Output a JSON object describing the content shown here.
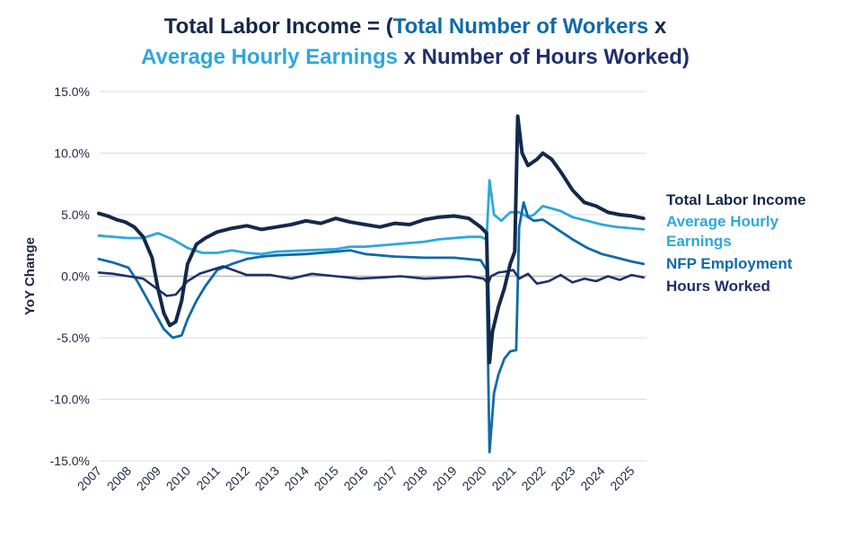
{
  "title": {
    "line1": {
      "part1": "Total Labor Income = (",
      "part2": "Total Number of Workers",
      "part3": " x"
    },
    "line2": {
      "part1": "Average Hourly Earnings",
      "part2": " x Number of Hours Worked)"
    }
  },
  "colors": {
    "navy": "#13294b",
    "mid_blue": "#0f6aa8",
    "light_blue": "#2fa7da",
    "hours": "#1f2f6b",
    "grid": "#dcdcdc",
    "zero": "#b8b8b8"
  },
  "chart_data": {
    "type": "line",
    "title": "Total Labor Income = (Total Number of Workers x Average Hourly Earnings x Number of Hours Worked)",
    "ylabel": "YoY Change",
    "xlabel": "",
    "ylim": [
      -15,
      15
    ],
    "xlim": [
      2007.0,
      2025.5
    ],
    "y_ticks": [
      15,
      10,
      5,
      0,
      -5,
      -10,
      -15
    ],
    "y_tick_labels": [
      "15.0%",
      "10.0%",
      "5.0%",
      "0.0%",
      "-5.0%",
      "-10.0%",
      "-15.0%"
    ],
    "x_ticks": [
      2007,
      2008,
      2009,
      2010,
      2011,
      2012,
      2013,
      2014,
      2015,
      2016,
      2017,
      2018,
      2019,
      2020,
      2021,
      2022,
      2023,
      2024,
      2025
    ],
    "x_tick_labels": [
      "2007",
      "2008",
      "2009",
      "2010",
      "2011",
      "2012",
      "2013",
      "2014",
      "2015",
      "2016",
      "2017",
      "2018",
      "2019",
      "2020",
      "2021",
      "2022",
      "2023",
      "2024",
      "2025"
    ],
    "grid": true,
    "legend_position": "right",
    "series": [
      {
        "name": "Total Labor Income",
        "color": "#13294b",
        "legend_label": "Total Labor Income",
        "x": [
          2007.0,
          2007.3,
          2007.6,
          2007.9,
          2008.2,
          2008.5,
          2008.8,
          2009.0,
          2009.2,
          2009.4,
          2009.6,
          2009.8,
          2010.0,
          2010.3,
          2010.6,
          2011.0,
          2011.5,
          2012.0,
          2012.5,
          2013.0,
          2013.5,
          2014.0,
          2014.5,
          2015.0,
          2015.5,
          2016.0,
          2016.5,
          2017.0,
          2017.5,
          2018.0,
          2018.5,
          2019.0,
          2019.5,
          2019.9,
          2020.1,
          2020.2,
          2020.3,
          2020.5,
          2020.7,
          2020.9,
          2021.05,
          2021.15,
          2021.3,
          2021.5,
          2021.8,
          2022.0,
          2022.3,
          2022.6,
          2023.0,
          2023.4,
          2023.8,
          2024.2,
          2024.6,
          2025.0,
          2025.4
        ],
        "values": [
          5.1,
          4.9,
          4.6,
          4.4,
          4.0,
          3.2,
          1.5,
          -1.0,
          -3.0,
          -4.0,
          -3.7,
          -2.0,
          1.0,
          2.6,
          3.1,
          3.6,
          3.9,
          4.1,
          3.8,
          4.0,
          4.2,
          4.5,
          4.3,
          4.7,
          4.4,
          4.2,
          4.0,
          4.3,
          4.2,
          4.6,
          4.8,
          4.9,
          4.7,
          4.0,
          3.5,
          -7.0,
          -4.5,
          -2.5,
          -1.0,
          1.0,
          2.0,
          13.0,
          10.0,
          9.0,
          9.5,
          10.0,
          9.5,
          8.5,
          7.0,
          6.0,
          5.7,
          5.2,
          5.0,
          4.9,
          4.7
        ]
      },
      {
        "name": "Average Hourly Earnings",
        "color": "#2fa7da",
        "legend_label": "Average Hourly Earnings",
        "x": [
          2007.0,
          2007.5,
          2008.0,
          2008.5,
          2009.0,
          2009.5,
          2010.0,
          2010.5,
          2011.0,
          2011.5,
          2012.0,
          2012.5,
          2013.0,
          2014.0,
          2015.0,
          2015.5,
          2016.0,
          2017.0,
          2018.0,
          2018.5,
          2019.0,
          2019.5,
          2019.9,
          2020.1,
          2020.2,
          2020.35,
          2020.6,
          2020.9,
          2021.2,
          2021.5,
          2021.7,
          2022.0,
          2022.3,
          2022.6,
          2023.0,
          2023.5,
          2024.0,
          2024.5,
          2025.0,
          2025.4
        ],
        "values": [
          3.3,
          3.2,
          3.1,
          3.1,
          3.5,
          3.0,
          2.3,
          1.9,
          1.9,
          2.1,
          1.9,
          1.8,
          2.0,
          2.1,
          2.2,
          2.4,
          2.4,
          2.6,
          2.8,
          3.0,
          3.1,
          3.2,
          3.2,
          3.0,
          7.8,
          5.0,
          4.5,
          5.2,
          5.2,
          4.8,
          5.0,
          5.7,
          5.5,
          5.3,
          4.8,
          4.5,
          4.2,
          4.0,
          3.9,
          3.8
        ]
      },
      {
        "name": "NFP Employment",
        "color": "#0f6aa8",
        "legend_label": "NFP Employment",
        "x": [
          2007.0,
          2007.5,
          2008.0,
          2008.3,
          2008.6,
          2008.9,
          2009.2,
          2009.5,
          2009.8,
          2010.0,
          2010.3,
          2010.6,
          2011.0,
          2011.5,
          2012.0,
          2012.5,
          2013.0,
          2014.0,
          2015.0,
          2015.5,
          2016.0,
          2017.0,
          2018.0,
          2019.0,
          2019.9,
          2020.1,
          2020.2,
          2020.35,
          2020.5,
          2020.7,
          2020.9,
          2021.1,
          2021.2,
          2021.35,
          2021.5,
          2021.7,
          2022.0,
          2022.5,
          2023.0,
          2023.5,
          2024.0,
          2024.5,
          2025.0,
          2025.4
        ],
        "values": [
          1.4,
          1.1,
          0.7,
          -0.4,
          -1.7,
          -3.0,
          -4.3,
          -5.0,
          -4.8,
          -3.5,
          -2.0,
          -0.8,
          0.5,
          1.0,
          1.4,
          1.6,
          1.7,
          1.8,
          2.0,
          2.1,
          1.8,
          1.6,
          1.5,
          1.5,
          1.3,
          0.5,
          -14.3,
          -9.5,
          -8.0,
          -6.7,
          -6.1,
          -6.0,
          4.0,
          6.0,
          4.8,
          4.5,
          4.6,
          3.8,
          3.0,
          2.3,
          1.8,
          1.5,
          1.2,
          1.0
        ]
      },
      {
        "name": "Hours Worked",
        "color": "#1f2f6b",
        "legend_label": "Hours Worked",
        "x": [
          2007.0,
          2007.5,
          2008.0,
          2008.5,
          2008.9,
          2009.3,
          2009.6,
          2010.0,
          2010.4,
          2010.8,
          2011.2,
          2012.0,
          2012.8,
          2013.5,
          2014.2,
          2015.0,
          2015.8,
          2016.5,
          2017.2,
          2018.0,
          2018.8,
          2019.5,
          2020.0,
          2020.15,
          2020.25,
          2020.5,
          2020.8,
          2021.0,
          2021.2,
          2021.5,
          2021.8,
          2022.2,
          2022.6,
          2023.0,
          2023.4,
          2023.8,
          2024.2,
          2024.6,
          2025.0,
          2025.4
        ],
        "values": [
          0.3,
          0.2,
          0.0,
          -0.2,
          -0.9,
          -1.6,
          -1.5,
          -0.4,
          0.2,
          0.5,
          0.8,
          0.1,
          0.1,
          -0.2,
          0.2,
          0.0,
          -0.2,
          -0.1,
          0.0,
          -0.2,
          -0.1,
          0.0,
          -0.2,
          -0.6,
          0.0,
          0.3,
          0.4,
          0.5,
          -0.2,
          0.2,
          -0.6,
          -0.4,
          0.1,
          -0.5,
          -0.2,
          -0.4,
          0.0,
          -0.3,
          0.1,
          -0.1
        ]
      }
    ]
  }
}
